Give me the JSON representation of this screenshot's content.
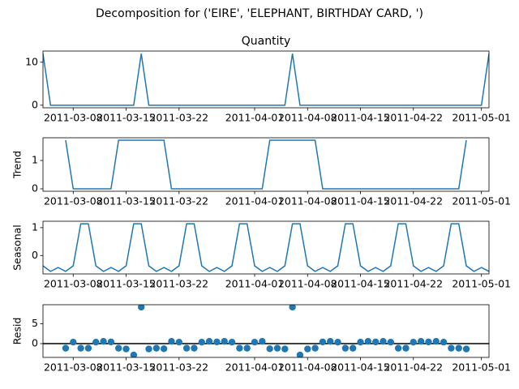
{
  "chart_data": {
    "title": "Decomposition for ('EIRE', 'ELEPHANT, BIRTHDAY CARD, ')",
    "x": [
      "2011-03-04",
      "2011-03-05",
      "2011-03-06",
      "2011-03-07",
      "2011-03-08",
      "2011-03-09",
      "2011-03-10",
      "2011-03-11",
      "2011-03-12",
      "2011-03-13",
      "2011-03-14",
      "2011-03-15",
      "2011-03-16",
      "2011-03-17",
      "2011-03-18",
      "2011-03-19",
      "2011-03-20",
      "2011-03-21",
      "2011-03-22",
      "2011-03-23",
      "2011-03-24",
      "2011-03-25",
      "2011-03-26",
      "2011-03-27",
      "2011-03-28",
      "2011-03-29",
      "2011-03-30",
      "2011-03-31",
      "2011-04-01",
      "2011-04-02",
      "2011-04-03",
      "2011-04-04",
      "2011-04-05",
      "2011-04-06",
      "2011-04-07",
      "2011-04-08",
      "2011-04-09",
      "2011-04-10",
      "2011-04-11",
      "2011-04-12",
      "2011-04-13",
      "2011-04-14",
      "2011-04-15",
      "2011-04-16",
      "2011-04-17",
      "2011-04-18",
      "2011-04-19",
      "2011-04-20",
      "2011-04-21",
      "2011-04-22",
      "2011-04-23",
      "2011-04-24",
      "2011-04-25",
      "2011-04-26",
      "2011-04-27",
      "2011-04-28",
      "2011-04-29",
      "2011-04-30",
      "2011-05-01",
      "2011-05-02"
    ],
    "xlim": [
      "2011-03-04",
      "2011-05-02"
    ],
    "xticks": [
      "2011-03-08",
      "2011-03-15",
      "2011-03-22",
      "2011-04-01",
      "2011-04-08",
      "2011-04-15",
      "2011-04-22",
      "2011-05-01"
    ],
    "color": "#1f77b4",
    "subplots": [
      {
        "type": "line",
        "title": "Quantity",
        "ylim": [
          -0.6,
          12.6
        ],
        "yticks": [
          0,
          10
        ],
        "values": [
          12,
          0,
          0,
          0,
          0,
          0,
          0,
          0,
          0,
          0,
          0,
          0,
          0,
          12,
          0,
          0,
          0,
          0,
          0,
          0,
          0,
          0,
          0,
          0,
          0,
          0,
          0,
          0,
          0,
          0,
          0,
          0,
          0,
          12,
          0,
          0,
          0,
          0,
          0,
          0,
          0,
          0,
          0,
          0,
          0,
          0,
          0,
          0,
          0,
          0,
          0,
          0,
          0,
          0,
          0,
          0,
          0,
          0,
          0,
          12
        ]
      },
      {
        "type": "line",
        "ylabel": "Trend",
        "ylim": [
          -0.086,
          1.8
        ],
        "yticks": [
          0,
          1
        ],
        "values": [
          null,
          null,
          null,
          1.714,
          0,
          0,
          0,
          0,
          0,
          0,
          1.714,
          1.714,
          1.714,
          1.714,
          1.714,
          1.714,
          1.714,
          0,
          0,
          0,
          0,
          0,
          0,
          0,
          0,
          0,
          0,
          0,
          0,
          0,
          1.714,
          1.714,
          1.714,
          1.714,
          1.714,
          1.714,
          1.714,
          0,
          0,
          0,
          0,
          0,
          0,
          0,
          0,
          0,
          0,
          0,
          0,
          0,
          0,
          0,
          0,
          0,
          0,
          0,
          1.714,
          null,
          null,
          null
        ]
      },
      {
        "type": "line",
        "ylabel": "Seasonal",
        "ylim": [
          -0.66,
          1.23
        ],
        "yticks": [
          0,
          1
        ],
        "values": [
          -0.37,
          -0.57,
          -0.43,
          -0.57,
          -0.37,
          1.14,
          1.14,
          -0.37,
          -0.57,
          -0.43,
          -0.57,
          -0.37,
          1.14,
          1.14,
          -0.37,
          -0.57,
          -0.43,
          -0.57,
          -0.37,
          1.14,
          1.14,
          -0.37,
          -0.57,
          -0.43,
          -0.57,
          -0.37,
          1.14,
          1.14,
          -0.37,
          -0.57,
          -0.43,
          -0.57,
          -0.37,
          1.14,
          1.14,
          -0.37,
          -0.57,
          -0.43,
          -0.57,
          -0.37,
          1.14,
          1.14,
          -0.37,
          -0.57,
          -0.43,
          -0.57,
          -0.37,
          1.14,
          1.14,
          -0.37,
          -0.57,
          -0.43,
          -0.57,
          -0.37,
          1.14,
          1.14,
          -0.37,
          -0.57,
          -0.43,
          -0.57
        ]
      },
      {
        "type": "scatter",
        "ylabel": "Resid",
        "ylim": [
          -3.45,
          9.75
        ],
        "yticks": [
          0,
          5
        ],
        "zero_line": true,
        "values": [
          null,
          null,
          null,
          -1.14,
          0.37,
          -1.14,
          -1.14,
          0.37,
          0.57,
          0.43,
          -1.14,
          -1.34,
          -2.85,
          9.15,
          -1.34,
          -1.14,
          -1.28,
          0.57,
          0.37,
          -1.14,
          -1.14,
          0.37,
          0.57,
          0.43,
          0.57,
          0.37,
          -1.14,
          -1.14,
          0.37,
          0.57,
          -1.28,
          -1.14,
          -1.34,
          9.15,
          -2.85,
          -1.34,
          -1.14,
          0.43,
          0.57,
          0.37,
          -1.14,
          -1.14,
          0.37,
          0.57,
          0.43,
          0.57,
          0.37,
          -1.14,
          -1.14,
          0.37,
          0.57,
          0.43,
          0.57,
          0.37,
          -1.14,
          -1.14,
          -1.34,
          null,
          null,
          null
        ]
      }
    ]
  }
}
